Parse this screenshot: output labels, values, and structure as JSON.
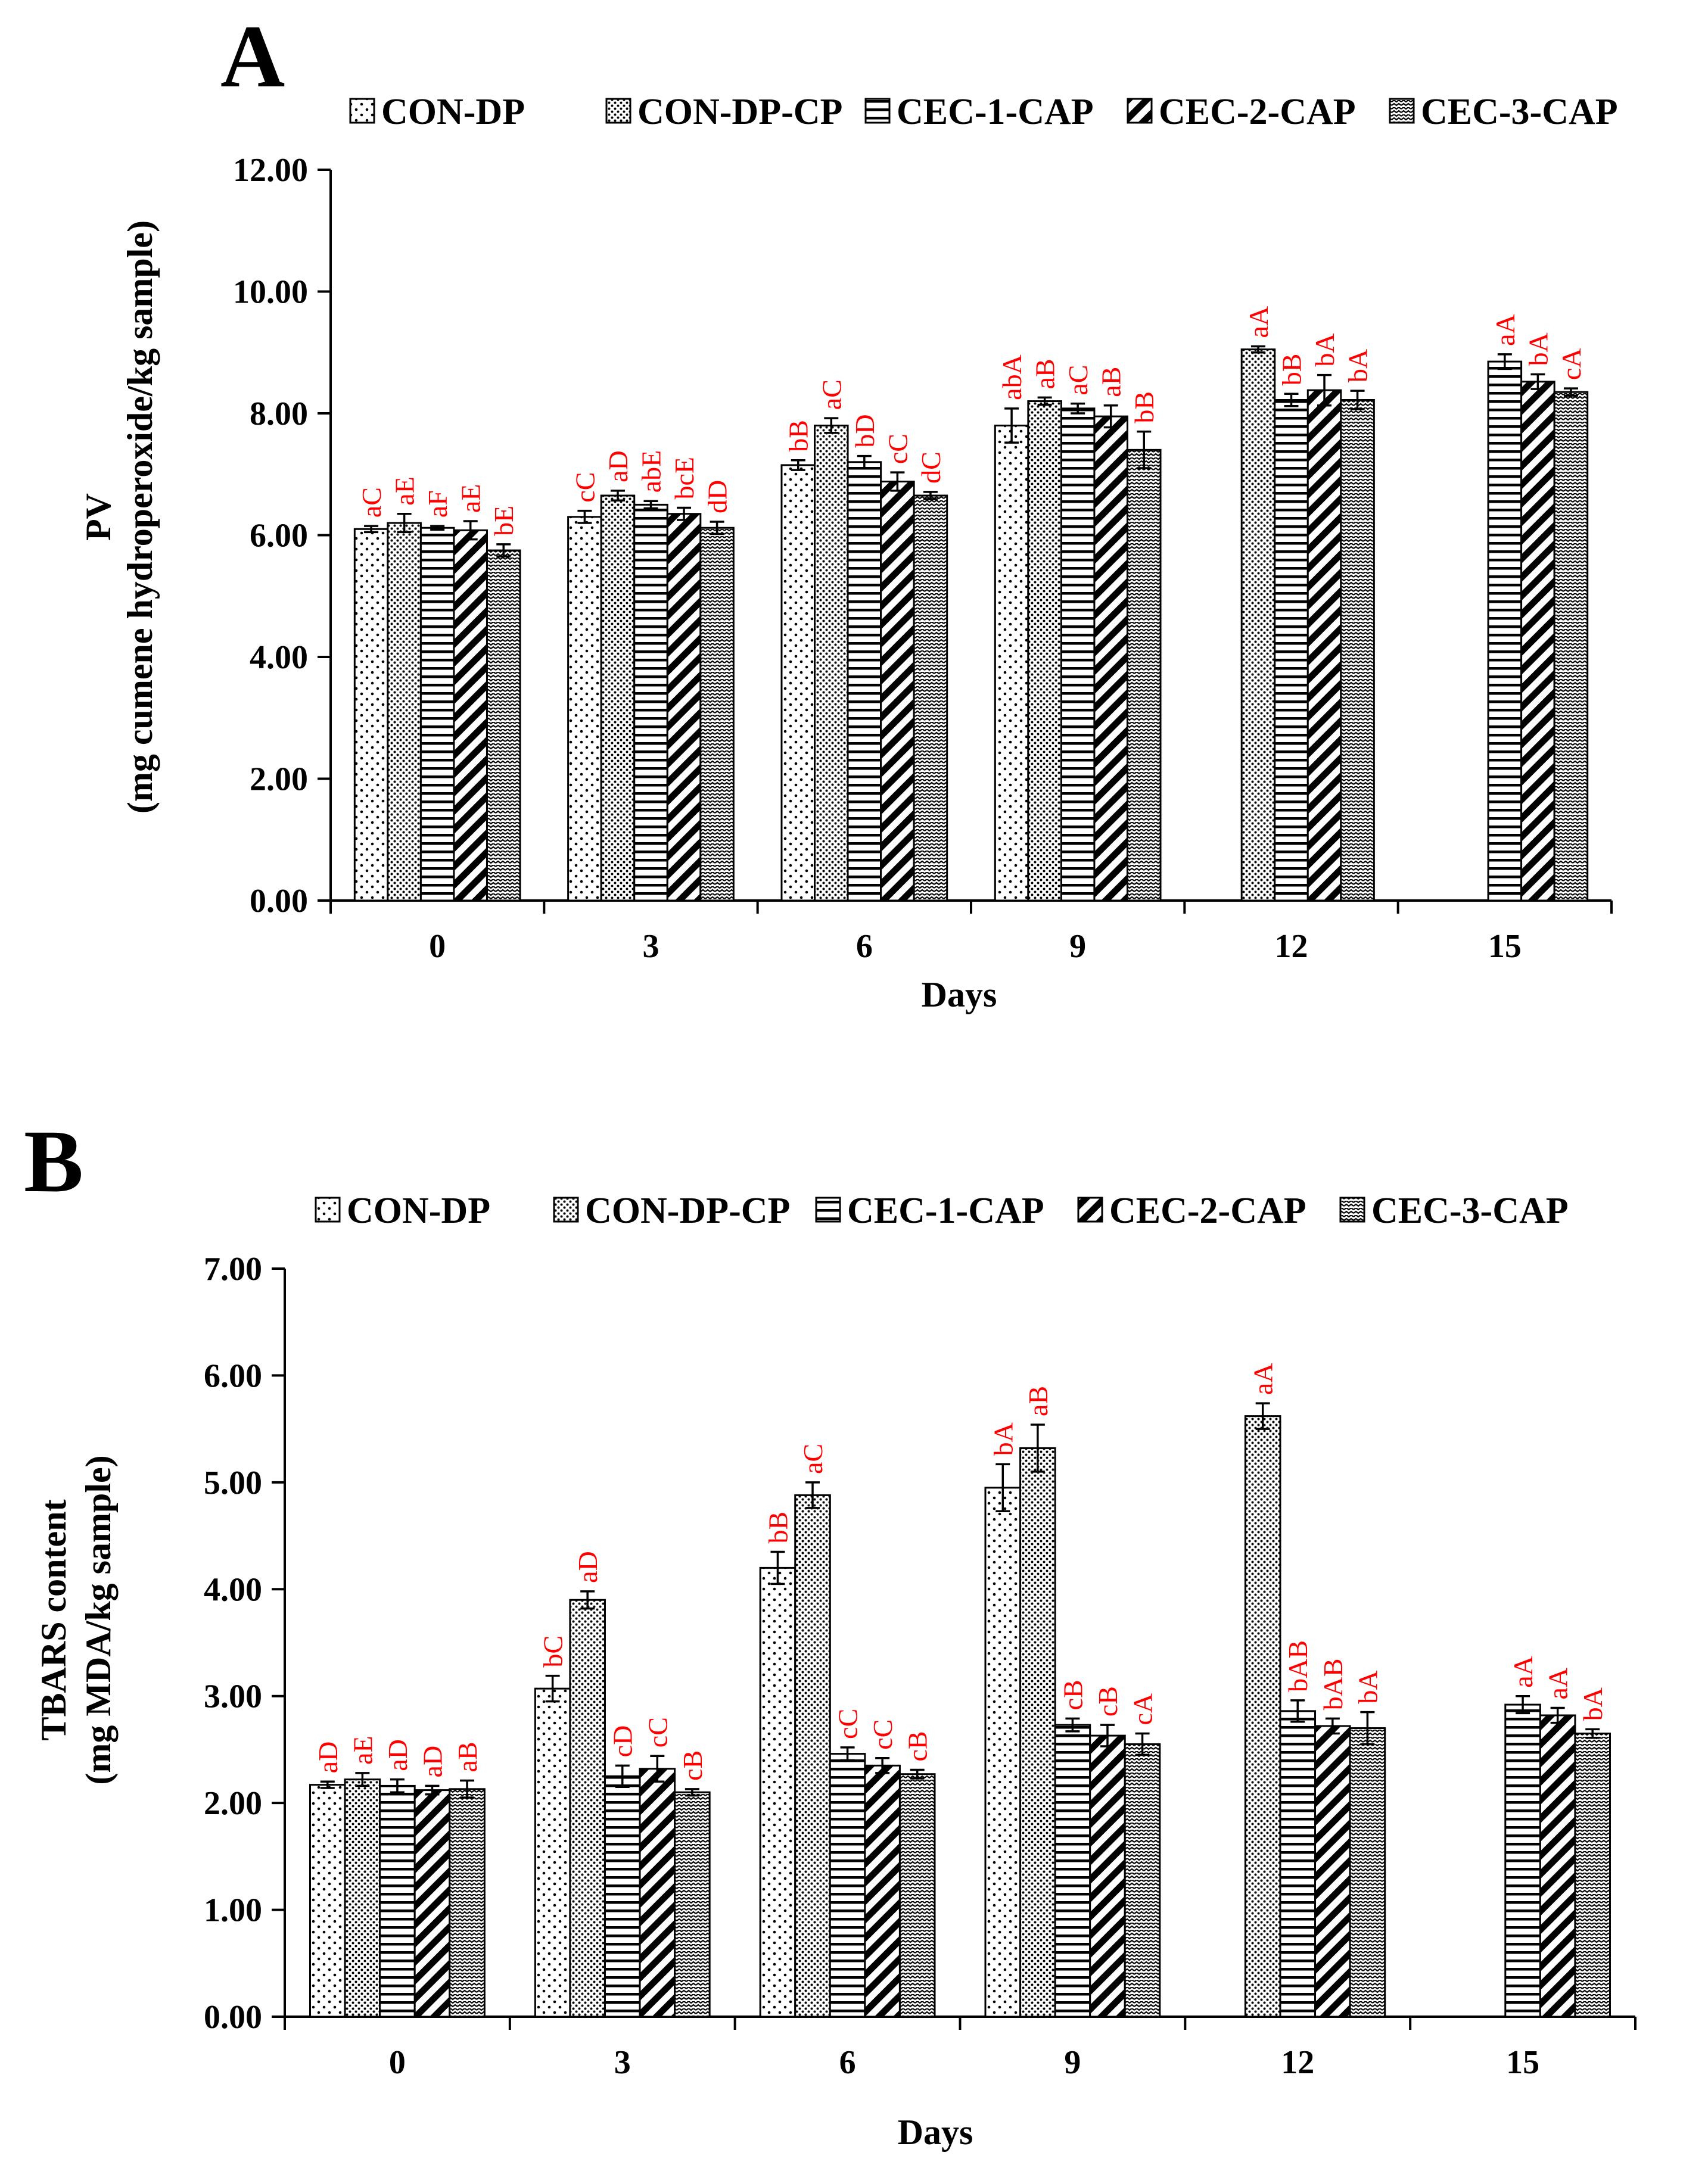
{
  "colors": {
    "axis": "#000000",
    "significance": "#ff0000",
    "background": "#ffffff"
  },
  "chart_data": [
    {
      "type": "bar",
      "panel": "A",
      "xlabel": "Days",
      "ylabel_line1": "PV",
      "ylabel_line2": "(mg cumene hydroperoxide/kg sample)",
      "ylim": [
        0,
        12
      ],
      "ytick_step": 2,
      "yticks": [
        "0.00",
        "2.00",
        "4.00",
        "6.00",
        "8.00",
        "10.00",
        "12.00"
      ],
      "categories": [
        "0",
        "3",
        "6",
        "9",
        "12",
        "15"
      ],
      "legend_position": "top",
      "series": [
        {
          "name": "CON-DP",
          "pattern": "dots",
          "values": [
            6.1,
            6.3,
            7.15,
            7.8,
            null,
            null
          ],
          "errors": [
            0.05,
            0.1,
            0.08,
            0.28,
            null,
            null
          ],
          "labels": [
            "aC",
            "cC",
            "bB",
            "abA",
            null,
            null
          ]
        },
        {
          "name": "CON-DP-CP",
          "pattern": "dense-dots",
          "values": [
            6.2,
            6.65,
            7.8,
            8.2,
            9.05,
            null
          ],
          "errors": [
            0.15,
            0.08,
            0.12,
            0.06,
            0.05,
            null
          ],
          "labels": [
            "aE",
            "aD",
            "aC",
            "aB",
            "aA",
            null
          ]
        },
        {
          "name": "CEC-1-CAP",
          "pattern": "horizontal",
          "values": [
            6.12,
            6.5,
            7.2,
            8.08,
            8.22,
            8.85
          ],
          "errors": [
            0.03,
            0.06,
            0.1,
            0.08,
            0.1,
            0.12
          ],
          "labels": [
            "aF",
            "abE",
            "bD",
            "aC",
            "bB",
            "aA"
          ]
        },
        {
          "name": "CEC-2-CAP",
          "pattern": "diagonal",
          "values": [
            6.08,
            6.35,
            6.88,
            7.95,
            8.38,
            8.52
          ],
          "errors": [
            0.15,
            0.1,
            0.15,
            0.18,
            0.25,
            0.12
          ],
          "labels": [
            "aE",
            "bcE",
            "cC",
            "aB",
            "bA",
            "bA"
          ]
        },
        {
          "name": "CEC-3-CAP",
          "pattern": "zigzag",
          "values": [
            5.75,
            6.12,
            6.65,
            7.4,
            8.22,
            8.35
          ],
          "errors": [
            0.1,
            0.1,
            0.06,
            0.3,
            0.15,
            0.06
          ],
          "labels": [
            "bE",
            "dD",
            "dC",
            "bB",
            "bA",
            "cA"
          ]
        }
      ]
    },
    {
      "type": "bar",
      "panel": "B",
      "xlabel": "Days",
      "ylabel_line1": "TBARS content",
      "ylabel_line2": "(mg MDA/kg sample)",
      "ylim": [
        0,
        7
      ],
      "ytick_step": 1,
      "yticks": [
        "0.00",
        "1.00",
        "2.00",
        "3.00",
        "4.00",
        "5.00",
        "6.00",
        "7.00"
      ],
      "categories": [
        "0",
        "3",
        "6",
        "9",
        "12",
        "15"
      ],
      "legend_position": "top",
      "series": [
        {
          "name": "CON-DP",
          "pattern": "dots",
          "values": [
            2.17,
            3.07,
            4.2,
            4.95,
            null,
            null
          ],
          "errors": [
            0.03,
            0.12,
            0.15,
            0.22,
            null,
            null
          ],
          "labels": [
            "aD",
            "bC",
            "bB",
            "bA",
            null,
            null
          ]
        },
        {
          "name": "CON-DP-CP",
          "pattern": "dense-dots",
          "values": [
            2.22,
            3.9,
            4.88,
            5.32,
            5.62,
            null
          ],
          "errors": [
            0.06,
            0.08,
            0.12,
            0.22,
            0.12,
            null
          ],
          "labels": [
            "aE",
            "aD",
            "aC",
            "aB",
            "aA",
            null
          ]
        },
        {
          "name": "CEC-1-CAP",
          "pattern": "horizontal",
          "values": [
            2.16,
            2.25,
            2.46,
            2.73,
            2.86,
            2.92
          ],
          "errors": [
            0.06,
            0.1,
            0.06,
            0.06,
            0.1,
            0.08
          ],
          "labels": [
            "aD",
            "cD",
            "cC",
            "cB",
            "bAB",
            "aA"
          ]
        },
        {
          "name": "CEC-2-CAP",
          "pattern": "diagonal",
          "values": [
            2.12,
            2.32,
            2.35,
            2.63,
            2.72,
            2.82
          ],
          "errors": [
            0.04,
            0.12,
            0.07,
            0.1,
            0.07,
            0.07
          ],
          "labels": [
            "aD",
            "cC",
            "cC",
            "cB",
            "bAB",
            "aA"
          ]
        },
        {
          "name": "CEC-3-CAP",
          "pattern": "zigzag",
          "values": [
            2.13,
            2.1,
            2.27,
            2.55,
            2.7,
            2.65
          ],
          "errors": [
            0.08,
            0.03,
            0.04,
            0.1,
            0.15,
            0.04
          ],
          "labels": [
            "aB",
            "cB",
            "cB",
            "cA",
            "bA",
            "bA"
          ]
        }
      ]
    }
  ]
}
